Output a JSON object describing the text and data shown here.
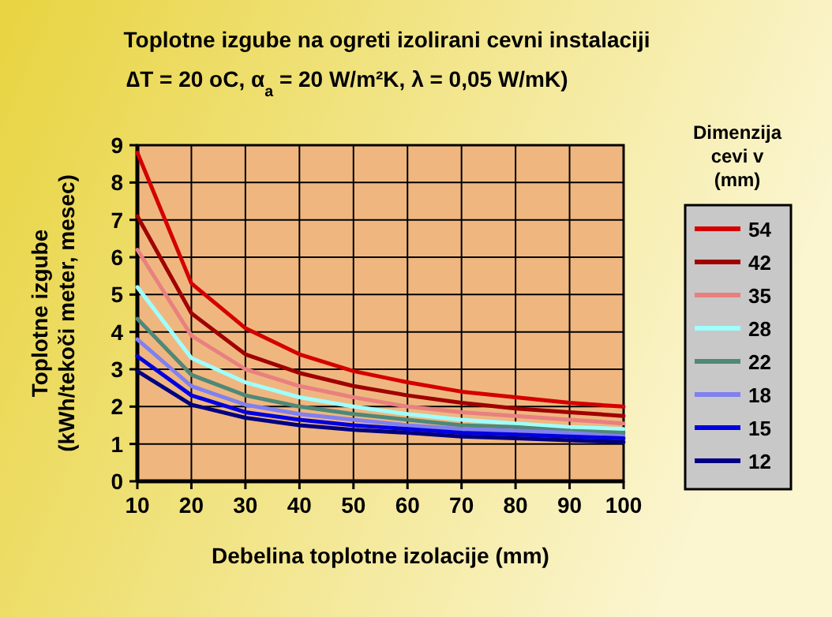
{
  "chart_data": {
    "type": "line",
    "title": "Toplotne izgube na ogreti izolirani cevni instalaciji",
    "subtitle": "∆T = 20 oC, α$_{a}$ = 20 W/m²K, λ = 0,05 W/mK)",
    "xlabel": "Debelina toplotne izolacije (mm)",
    "ylabel": "Toplotne izgube\n(kWh/tekoči meter, mesec)",
    "legend_title": "Dimenzija\ncevi v\n(mm)",
    "legend": "right",
    "grid": true,
    "marker": "none",
    "line_style": "solid",
    "x": [
      10,
      20,
      30,
      40,
      50,
      60,
      70,
      80,
      90,
      100
    ],
    "xlim": [
      10,
      100
    ],
    "xticks": [
      10,
      20,
      30,
      40,
      50,
      60,
      70,
      80,
      90,
      100
    ],
    "ylim": [
      0,
      9
    ],
    "yticks": [
      0,
      1,
      2,
      3,
      4,
      5,
      6,
      7,
      8,
      9
    ],
    "series": [
      {
        "name": "54",
        "color": "#d40000",
        "values": [
          8.8,
          5.3,
          4.1,
          3.4,
          2.95,
          2.65,
          2.4,
          2.25,
          2.1,
          2.0
        ]
      },
      {
        "name": "42",
        "color": "#a00000",
        "values": [
          7.1,
          4.5,
          3.4,
          2.9,
          2.55,
          2.3,
          2.1,
          1.95,
          1.85,
          1.75
        ]
      },
      {
        "name": "35",
        "color": "#e88080",
        "values": [
          6.2,
          3.9,
          3.0,
          2.55,
          2.25,
          2.0,
          1.85,
          1.75,
          1.65,
          1.55
        ]
      },
      {
        "name": "28",
        "color": "#a0ffff",
        "values": [
          5.2,
          3.3,
          2.65,
          2.25,
          2.0,
          1.8,
          1.65,
          1.55,
          1.45,
          1.4
        ]
      },
      {
        "name": "22",
        "color": "#508878",
        "values": [
          4.35,
          2.85,
          2.3,
          2.0,
          1.8,
          1.65,
          1.5,
          1.45,
          1.35,
          1.3
        ]
      },
      {
        "name": "18",
        "color": "#8080f0",
        "values": [
          3.8,
          2.55,
          2.05,
          1.8,
          1.65,
          1.5,
          1.4,
          1.35,
          1.3,
          1.2
        ]
      },
      {
        "name": "15",
        "color": "#0000e0",
        "values": [
          3.35,
          2.3,
          1.85,
          1.65,
          1.5,
          1.4,
          1.3,
          1.25,
          1.2,
          1.15
        ]
      },
      {
        "name": "12",
        "color": "#000080",
        "values": [
          2.95,
          2.05,
          1.7,
          1.5,
          1.38,
          1.3,
          1.2,
          1.15,
          1.1,
          1.05
        ]
      }
    ]
  }
}
